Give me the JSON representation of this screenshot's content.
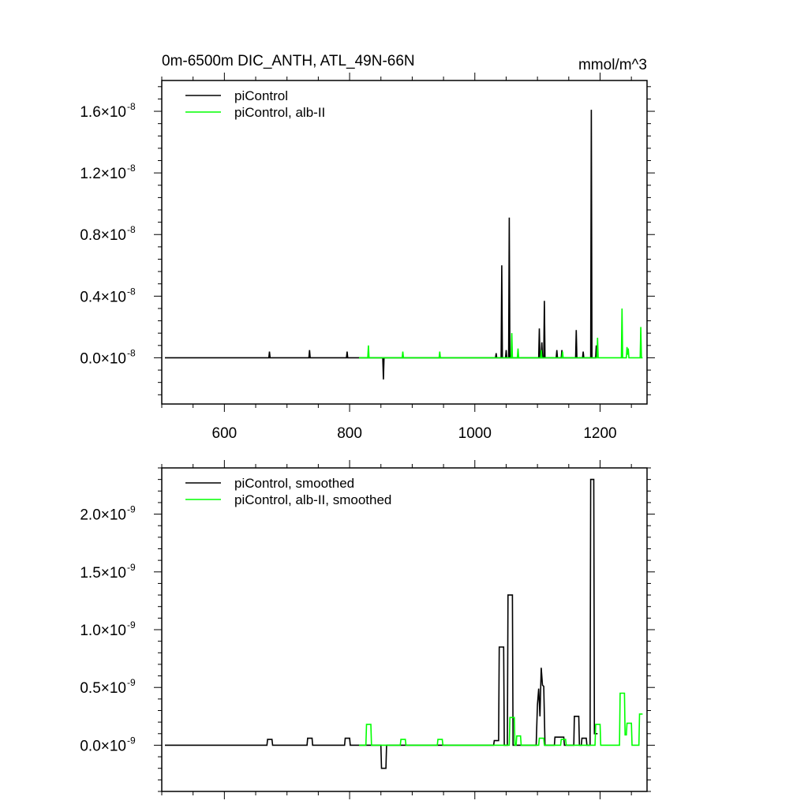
{
  "header": {
    "title_left": "0m-6500m DIC_ANTH, ATL_49N-66N",
    "title_right": "mmol/m^3"
  },
  "colors": {
    "series_black": "#000000",
    "series_green": "#00ff00",
    "frame": "#000000"
  },
  "chart_data": [
    {
      "type": "line",
      "xlim": [
        500,
        1275
      ],
      "ylim": [
        -3e-09,
        1.8e-08
      ],
      "x_ticks": [
        600,
        800,
        1000,
        1200
      ],
      "y_ticks": [
        {
          "mant": "0.0",
          "exp": "-8",
          "value": 0.0
        },
        {
          "mant": "0.4",
          "exp": "-8",
          "value": 4e-09
        },
        {
          "mant": "0.8",
          "exp": "-8",
          "value": 8e-09
        },
        {
          "mant": "1.2",
          "exp": "-8",
          "value": 1.2e-08
        },
        {
          "mant": "1.6",
          "exp": "-8",
          "value": 1.6e-08
        }
      ],
      "grid": false,
      "legend_position": "top-left",
      "series": [
        {
          "name": "piControl",
          "color": "#000000",
          "x": [
            505,
            671,
            672,
            673,
            735,
            736,
            737,
            795,
            796,
            797,
            853,
            854,
            855,
            1033,
            1034,
            1035,
            1042,
            1043,
            1044,
            1049,
            1050,
            1051,
            1054,
            1055,
            1056,
            1102,
            1103,
            1104,
            1106,
            1107,
            1108,
            1110,
            1111,
            1112,
            1130,
            1131,
            1132,
            1138,
            1139,
            1140,
            1161,
            1162,
            1163,
            1172,
            1173,
            1174,
            1185,
            1186,
            1187,
            1193,
            1194,
            1195
          ],
          "y": [
            0,
            0,
            4e-10,
            0,
            0,
            5e-10,
            0,
            0,
            4e-10,
            0,
            0,
            -1.4e-09,
            0,
            0,
            3e-10,
            0,
            0,
            6e-09,
            0,
            0,
            5e-10,
            0,
            0,
            9.1e-09,
            0,
            0,
            1.9e-09,
            0,
            0,
            1e-09,
            0,
            0,
            3.7e-09,
            0,
            0,
            5e-10,
            0,
            0,
            5e-10,
            0,
            0,
            1.8e-09,
            0,
            0,
            4e-10,
            0,
            0,
            1.61e-08,
            0,
            0,
            8e-10,
            0
          ]
        },
        {
          "name": "piControl, alb-II",
          "color": "#00ff00",
          "x": [
            815,
            829,
            830,
            831,
            884,
            885,
            886,
            943,
            944,
            945,
            1058,
            1059,
            1060,
            1068,
            1069,
            1070,
            1105,
            1106,
            1107,
            1139,
            1140,
            1141,
            1195,
            1196,
            1197,
            1234,
            1235,
            1236,
            1242,
            1243,
            1244,
            1245,
            1246,
            1264,
            1265,
            1266,
            1268
          ],
          "y": [
            0,
            0,
            8e-10,
            0,
            0,
            4e-10,
            0,
            0,
            4e-10,
            0,
            0,
            1.6e-09,
            0,
            0,
            6e-10,
            0,
            0,
            5e-10,
            0,
            0,
            4e-10,
            0,
            0,
            1.3e-09,
            0,
            0,
            3.2e-09,
            0,
            0,
            7e-10,
            2e-10,
            6e-10,
            0,
            0,
            2e-09,
            0,
            0
          ]
        }
      ]
    },
    {
      "type": "line",
      "xlim": [
        500,
        1275
      ],
      "ylim": [
        -4e-10,
        2.4e-09
      ],
      "x_ticks": [
        600,
        800,
        1000,
        1200
      ],
      "y_ticks": [
        {
          "mant": "0.0",
          "exp": "-9",
          "value": 0.0
        },
        {
          "mant": "0.5",
          "exp": "-9",
          "value": 5e-10
        },
        {
          "mant": "1.0",
          "exp": "-9",
          "value": 1e-09
        },
        {
          "mant": "1.5",
          "exp": "-9",
          "value": 1.5e-09
        },
        {
          "mant": "2.0",
          "exp": "-9",
          "value": 2e-09
        }
      ],
      "grid": false,
      "legend_position": "top-left",
      "series": [
        {
          "name": "piControl, smoothed",
          "color": "#000000",
          "x": [
            505,
            668,
            669,
            676,
            677,
            732,
            733,
            740,
            741,
            792,
            793,
            800,
            801,
            850,
            851,
            858,
            859,
            1030,
            1031,
            1038,
            1039,
            1046,
            1047,
            1052,
            1053,
            1060,
            1061,
            1098,
            1100,
            1102,
            1104,
            1106,
            1108,
            1110,
            1112,
            1127,
            1128,
            1135,
            1136,
            1142,
            1143,
            1158,
            1159,
            1166,
            1167,
            1170,
            1171,
            1178,
            1179,
            1184,
            1185,
            1190,
            1191,
            1196
          ],
          "y": [
            0,
            0,
            5e-11,
            5e-11,
            0,
            0,
            6e-11,
            6e-11,
            0,
            0,
            6e-11,
            6e-11,
            0,
            0,
            -2e-10,
            -2e-10,
            0,
            0,
            4e-11,
            4e-11,
            8.5e-10,
            8.5e-10,
            0,
            0,
            1.3e-09,
            1.3e-09,
            0,
            0,
            3.5e-10,
            4.9e-10,
            2.5e-10,
            6.7e-10,
            5.2e-10,
            5.1e-10,
            0,
            0,
            7e-11,
            7e-11,
            7e-11,
            7e-11,
            0,
            0,
            2.5e-10,
            2.5e-10,
            0,
            0,
            6e-11,
            6e-11,
            0,
            0,
            2.3e-09,
            2.3e-09,
            1e-10,
            1e-10
          ]
        },
        {
          "name": "piControl, alb-II, smoothed",
          "color": "#00ff00",
          "x": [
            815,
            826,
            827,
            834,
            835,
            881,
            882,
            889,
            890,
            940,
            941,
            948,
            949,
            1055,
            1056,
            1063,
            1064,
            1066,
            1067,
            1073,
            1074,
            1102,
            1103,
            1110,
            1111,
            1137,
            1138,
            1145,
            1146,
            1192,
            1193,
            1200,
            1201,
            1231,
            1232,
            1239,
            1240,
            1242,
            1243,
            1250,
            1251,
            1262,
            1263,
            1268
          ],
          "y": [
            0,
            0,
            1.8e-10,
            1.8e-10,
            0,
            0,
            5e-11,
            5e-11,
            0,
            0,
            5e-11,
            5e-11,
            0,
            0,
            2.4e-10,
            2.4e-10,
            0,
            0,
            8e-11,
            8e-11,
            0,
            0,
            6e-11,
            6e-11,
            0,
            0,
            5e-11,
            5e-11,
            0,
            0,
            1.8e-10,
            1.8e-10,
            0,
            0,
            4.5e-10,
            4.5e-10,
            9e-11,
            9e-11,
            1.9e-10,
            1.9e-10,
            0,
            0,
            2.7e-10,
            2.7e-10
          ]
        }
      ]
    }
  ]
}
